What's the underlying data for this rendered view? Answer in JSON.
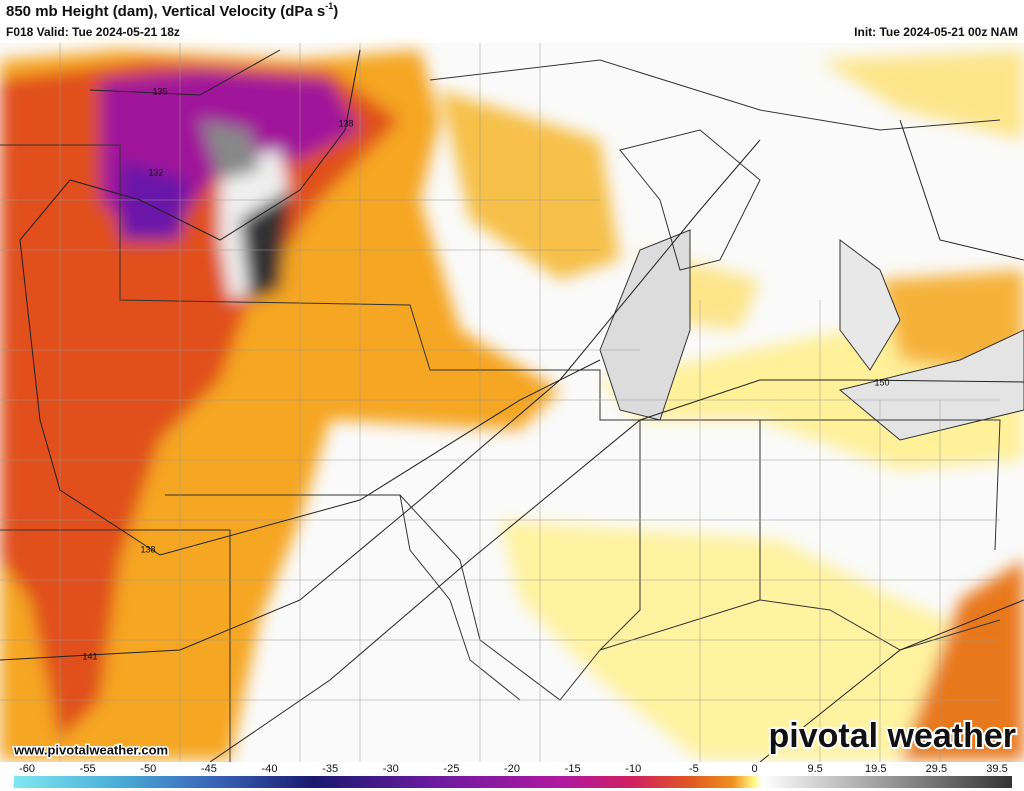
{
  "header": {
    "title": "850 mb Height (dam), Vertical Velocity (dPa s",
    "title_superscript": "-1",
    "title_end": ")",
    "valid": "F018 Valid: Tue 2024-05-21 18z",
    "init": "Init: Tue 2024-05-21 00z NAM"
  },
  "contour_labels": [
    135,
    138,
    132,
    150,
    138,
    141
  ],
  "watermark": "pivotal weather",
  "website": "www.pivotalweather.com",
  "colorbar": {
    "labels": [
      -60,
      -55,
      -50,
      -45,
      -40,
      -35,
      -30,
      -25,
      -20,
      -15,
      -10,
      -5,
      0,
      9.5,
      19.5,
      29.5,
      39.5
    ]
  }
}
